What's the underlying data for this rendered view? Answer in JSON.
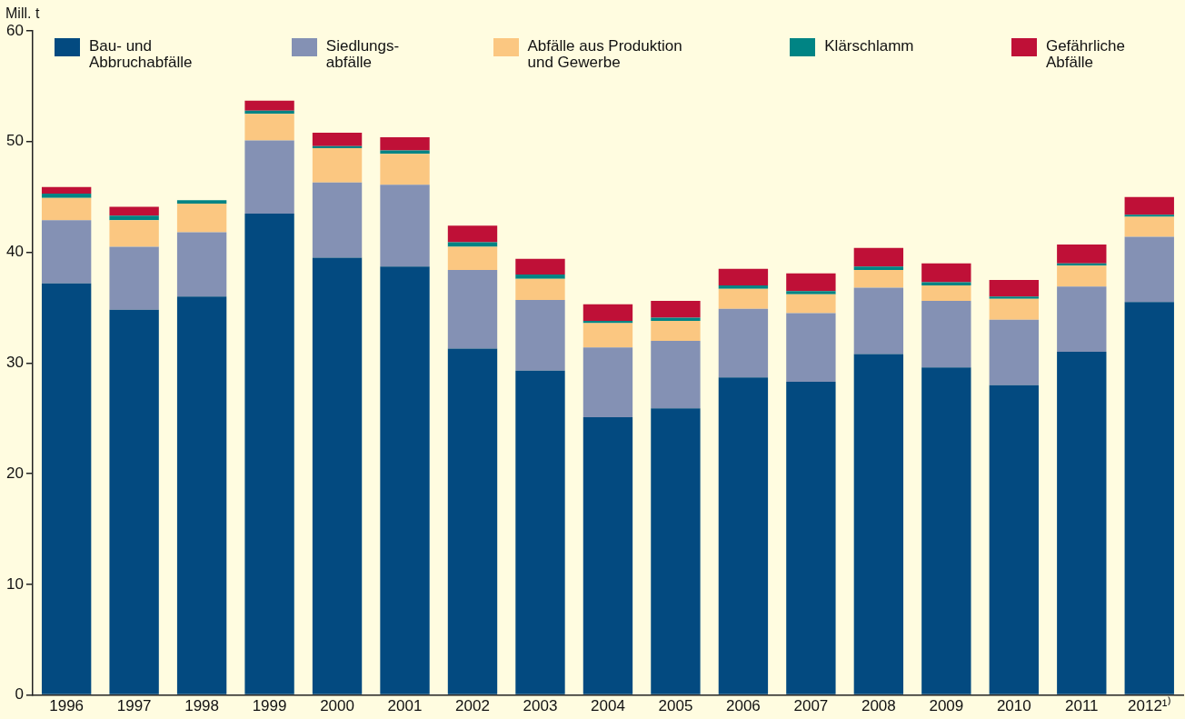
{
  "chart_data": {
    "type": "bar",
    "stacked": true,
    "ylabel": "Mill. t",
    "legend": "top",
    "grid": false,
    "categories": [
      "1996",
      "1997",
      "1998",
      "1999",
      "2000",
      "2001",
      "2002",
      "2003",
      "2004",
      "2005",
      "2006",
      "2007",
      "2008",
      "2009",
      "2010",
      "2011",
      "2012¹⁾"
    ],
    "ylim": [
      0,
      60
    ],
    "yticks": [
      0,
      10,
      20,
      30,
      40,
      50,
      60
    ],
    "series": [
      {
        "name": "Bau- und\nAbbruchabfälle",
        "color": "#034a80",
        "values": [
          37.2,
          34.8,
          36.0,
          43.5,
          39.5,
          38.7,
          31.3,
          29.3,
          25.1,
          25.9,
          28.7,
          28.3,
          30.8,
          29.6,
          28.0,
          31.0,
          35.5
        ]
      },
      {
        "name": "Siedlungs-\nabfälle",
        "color": "#8491b4",
        "values": [
          5.7,
          5.7,
          5.8,
          6.6,
          6.8,
          7.4,
          7.1,
          6.4,
          6.3,
          6.1,
          6.2,
          6.2,
          6.0,
          6.0,
          5.9,
          5.9,
          5.9
        ]
      },
      {
        "name": "Abfälle aus Produktion\nund Gewerbe",
        "color": "#fbc781",
        "values": [
          2.0,
          2.4,
          2.6,
          2.4,
          3.1,
          2.8,
          2.1,
          1.9,
          2.2,
          1.8,
          1.8,
          1.7,
          1.6,
          1.4,
          1.9,
          1.9,
          1.8
        ]
      },
      {
        "name": "Klärschlamm",
        "color": "#008484",
        "values": [
          0.4,
          0.4,
          0.3,
          0.3,
          0.2,
          0.3,
          0.4,
          0.4,
          0.2,
          0.3,
          0.3,
          0.3,
          0.3,
          0.3,
          0.2,
          0.2,
          0.2
        ]
      },
      {
        "name": "Gefährliche\nAbfälle",
        "color": "#bf1037",
        "values": [
          0.6,
          0.8,
          0,
          0.9,
          1.2,
          1.2,
          1.5,
          1.4,
          1.5,
          1.5,
          1.5,
          1.6,
          1.7,
          1.7,
          1.5,
          1.7,
          1.6
        ]
      }
    ]
  }
}
